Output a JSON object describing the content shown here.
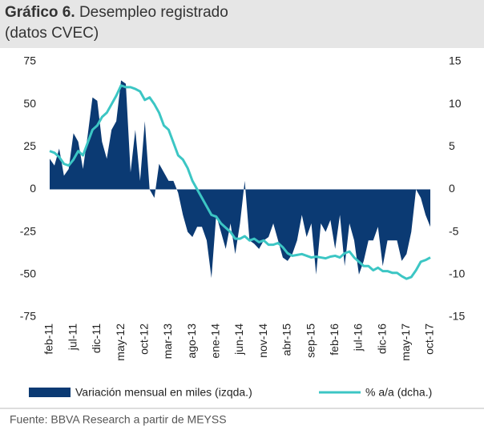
{
  "title_bold": "Gráfico 6.",
  "title": "Desempleo registrado",
  "subtitle": "(datos CVEC)",
  "source": "Fuente: BBVA Research a partir de MEYSS",
  "chart_data": {
    "type": "area-line",
    "categories": [
      "feb-11",
      null,
      null,
      null,
      null,
      "jul-11",
      null,
      null,
      null,
      null,
      "dic-11",
      null,
      null,
      null,
      null,
      "may-12",
      null,
      null,
      null,
      null,
      "oct-12",
      null,
      null,
      null,
      null,
      "mar-13",
      null,
      null,
      null,
      null,
      "ago-13",
      null,
      null,
      null,
      null,
      "ene-14",
      null,
      null,
      null,
      null,
      "jun-14",
      null,
      null,
      null,
      null,
      "nov-14",
      null,
      null,
      null,
      null,
      "abr-15",
      null,
      null,
      null,
      null,
      "sep-15",
      null,
      null,
      null,
      null,
      "feb-16",
      null,
      null,
      null,
      null,
      "jul-16",
      null,
      null,
      null,
      null,
      "dic-16",
      null,
      null,
      null,
      null,
      "may-17",
      null,
      null,
      null,
      null,
      "oct-17"
    ],
    "series": [
      {
        "name": "Variación mensual en miles (izqda.)",
        "color": "#0b3a73",
        "axis": "y",
        "values": [
          18,
          14,
          24,
          8,
          12,
          33,
          28,
          12,
          32,
          54,
          52,
          28,
          18,
          35,
          40,
          64,
          62,
          10,
          35,
          5,
          40,
          0,
          -5,
          15,
          10,
          5,
          5,
          -2,
          -15,
          -25,
          -28,
          -22,
          -22,
          -30,
          -52,
          -15,
          -25,
          -35,
          -20,
          -38,
          -20,
          5,
          -30,
          -32,
          -35,
          -30,
          -28,
          -20,
          -30,
          -40,
          -42,
          -38,
          -30,
          -15,
          -28,
          -20,
          -50,
          -20,
          -25,
          -18,
          -35,
          -15,
          -45,
          -20,
          -30,
          -50,
          -42,
          -30,
          -30,
          -22,
          -45,
          -30,
          -30,
          -30,
          -42,
          -38,
          -25,
          0,
          -5,
          -15,
          -22
        ]
      },
      {
        "name": "% a/a (dcha.)",
        "color": "#3cc6c4",
        "axis": "y2",
        "values": [
          4.5,
          4.3,
          3.8,
          3.0,
          2.8,
          3.5,
          4.5,
          4.0,
          5.5,
          7.0,
          7.5,
          8.5,
          9.0,
          10.0,
          11.0,
          12.2,
          12.0,
          12.0,
          11.8,
          11.5,
          10.5,
          10.8,
          10.0,
          9.0,
          7.5,
          7.0,
          5.5,
          4.0,
          3.5,
          2.5,
          1.0,
          0,
          -1.0,
          -2.0,
          -3.0,
          -3.2,
          -4.0,
          -4.5,
          -5.0,
          -5.8,
          -5.8,
          -5.5,
          -6.0,
          -5.8,
          -6.2,
          -6.0,
          -6.5,
          -6.5,
          -6.3,
          -6.8,
          -7.5,
          -7.8,
          -7.7,
          -7.6,
          -7.8,
          -8.0,
          -7.9,
          -8.0,
          -8.1,
          -7.9,
          -7.8,
          -8.0,
          -7.5,
          -7.3,
          -8.0,
          -8.5,
          -9.0,
          -9.0,
          -9.5,
          -9.2,
          -9.6,
          -9.6,
          -9.8,
          -9.8,
          -10.2,
          -10.5,
          -10.3,
          -9.5,
          -8.5,
          -8.3,
          -8.0
        ]
      }
    ],
    "ylim": [
      -75,
      75
    ],
    "yticks": [
      75,
      50,
      25,
      0,
      -25,
      -50,
      -75
    ],
    "y2lim": [
      -15,
      15
    ],
    "y2ticks": [
      15,
      10,
      5,
      0,
      -5,
      -10,
      -15
    ]
  }
}
